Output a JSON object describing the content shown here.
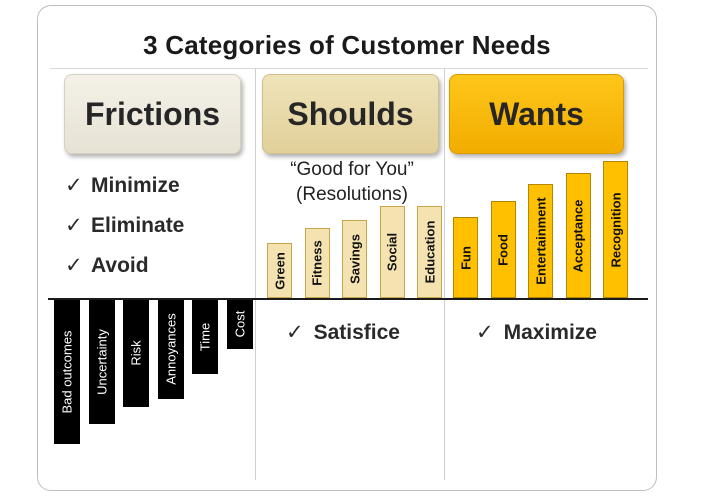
{
  "title": "3 Categories of Customer Needs",
  "frictions": {
    "header": "Frictions",
    "checklist": [
      "Minimize",
      "Eliminate",
      "Avoid"
    ],
    "bars": [
      {
        "label": "Bad outcomes",
        "magnitude": 145
      },
      {
        "label": "Uncertainty",
        "magnitude": 125
      },
      {
        "label": "Risk",
        "magnitude": 108
      },
      {
        "label": "Annoyances",
        "magnitude": 100
      },
      {
        "label": "Time",
        "magnitude": 75
      },
      {
        "label": "Cost",
        "magnitude": 50
      }
    ]
  },
  "shoulds": {
    "header": "Shoulds",
    "subtitle_line1": "“Good for You”",
    "subtitle_line2": "(Resolutions)",
    "bars": [
      {
        "label": "Green",
        "magnitude": 55
      },
      {
        "label": "Fitness",
        "magnitude": 70
      },
      {
        "label": "Savings",
        "magnitude": 78
      },
      {
        "label": "Social",
        "magnitude": 92
      },
      {
        "label": "Education",
        "magnitude": 92
      }
    ],
    "footer": "Satisfice"
  },
  "wants": {
    "header": "Wants",
    "bars": [
      {
        "label": "Fun",
        "magnitude": 81
      },
      {
        "label": "Food",
        "magnitude": 97
      },
      {
        "label": "Entertainment",
        "magnitude": 114
      },
      {
        "label": "Acceptance",
        "magnitude": 125
      },
      {
        "label": "Recognition",
        "magnitude": 137
      }
    ],
    "footer": "Maximize"
  },
  "check_symbol": "✓",
  "colors": {
    "frictions_header": "#ebe8dc",
    "shoulds_header": "#e8d9a8",
    "wants_header": "#ffbf00",
    "shoulds_bar": "#f4e3b0",
    "wants_bar": "#ffc000",
    "frictions_bar": "#000000"
  }
}
